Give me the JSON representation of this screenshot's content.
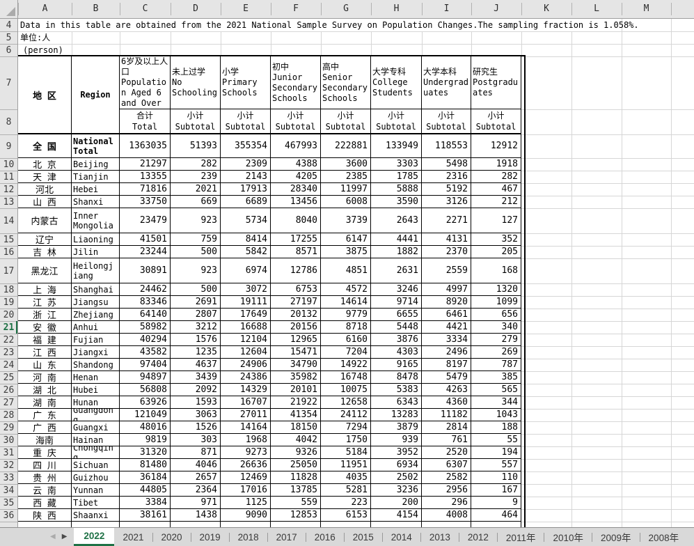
{
  "colors": {
    "accent_green": "#1e7145",
    "header_bg": "#e5e5e5",
    "gridline": "#d6d6d6",
    "tabbar_bg": "#d9d9d9"
  },
  "column_letters": [
    "A",
    "B",
    "C",
    "D",
    "E",
    "F",
    "G",
    "H",
    "I",
    "J",
    "K",
    "L",
    "M"
  ],
  "visible_row_numbers_range": [
    4,
    36
  ],
  "selected_row": 21,
  "notes": {
    "source_note": "Data in this table are obtained from the 2021 National Sample Survey on Population Changes.The sampling fraction is 1.058%.",
    "unit_cn": "单位:人",
    "unit_en": "(person)"
  },
  "table": {
    "corner_cn": "地 区",
    "corner_en": "Region",
    "columns": [
      {
        "cn": "6岁及以上人口",
        "en": "Population Aged 6 and Over",
        "sub_cn": "合计",
        "sub_en": "Total"
      },
      {
        "cn": "未上过学",
        "en": "No Schooling",
        "sub_cn": "小计",
        "sub_en": "Subtotal"
      },
      {
        "cn": "小学",
        "en": "Primary Schools",
        "sub_cn": "小计",
        "sub_en": "Subtotal"
      },
      {
        "cn": "初中",
        "en": "Junior Secondary Schools",
        "sub_cn": "小计",
        "sub_en": "Subtotal"
      },
      {
        "cn": "高中",
        "en": "Senior Secondary Schools",
        "sub_cn": "小计",
        "sub_en": "Subtotal"
      },
      {
        "cn": "大学专科",
        "en": "College Students",
        "sub_cn": "小计",
        "sub_en": "Subtotal"
      },
      {
        "cn": "大学本科",
        "en": "Undergraduates",
        "sub_cn": "小计",
        "sub_en": "Subtotal"
      },
      {
        "cn": "研究生",
        "en": "Postgraduates",
        "sub_cn": "小计",
        "sub_en": "Subtotal"
      }
    ],
    "rows": [
      {
        "row": 9,
        "cn": "全 国",
        "en": "National Total",
        "bold": true,
        "values": [
          1363035,
          51393,
          355354,
          467993,
          222881,
          133949,
          118553,
          12912
        ]
      },
      {
        "row": 10,
        "cn": "北 京",
        "en": "Beijing",
        "values": [
          21297,
          282,
          2309,
          4388,
          3600,
          3303,
          5498,
          1918
        ]
      },
      {
        "row": 11,
        "cn": "天 津",
        "en": "Tianjin",
        "values": [
          13355,
          239,
          2143,
          4205,
          2385,
          1785,
          2316,
          282
        ]
      },
      {
        "row": 12,
        "cn": "河北",
        "en": "Hebei",
        "values": [
          71816,
          2021,
          17913,
          28340,
          11997,
          5888,
          5192,
          467
        ]
      },
      {
        "row": 13,
        "cn": "山 西",
        "en": "Shanxi",
        "values": [
          33750,
          669,
          6689,
          13456,
          6008,
          3590,
          3126,
          212
        ]
      },
      {
        "row": 14,
        "cn": "内蒙古",
        "en": "Inner Mongolia",
        "values": [
          23479,
          923,
          5734,
          8040,
          3739,
          2643,
          2271,
          127
        ]
      },
      {
        "row": 15,
        "cn": "辽宁",
        "en": "Liaoning",
        "values": [
          41501,
          759,
          8414,
          17255,
          6147,
          4441,
          4131,
          352
        ]
      },
      {
        "row": 16,
        "cn": "吉 林",
        "en": "Jilin",
        "values": [
          23244,
          500,
          5842,
          8571,
          3875,
          1882,
          2370,
          205
        ]
      },
      {
        "row": 17,
        "cn": "黑龙江",
        "en": "Heilongjiang",
        "values": [
          30891,
          923,
          6974,
          12786,
          4851,
          2631,
          2559,
          168
        ]
      },
      {
        "row": 18,
        "cn": "上 海",
        "en": "Shanghai",
        "values": [
          24462,
          500,
          3072,
          6753,
          4572,
          3246,
          4997,
          1320
        ]
      },
      {
        "row": 19,
        "cn": "江 苏",
        "en": "Jiangsu",
        "values": [
          83346,
          2691,
          19111,
          27197,
          14614,
          9714,
          8920,
          1099
        ]
      },
      {
        "row": 20,
        "cn": "浙 江",
        "en": "Zhejiang",
        "values": [
          64140,
          2807,
          17649,
          20132,
          9779,
          6655,
          6461,
          656
        ]
      },
      {
        "row": 21,
        "cn": "安 徽",
        "en": "Anhui",
        "values": [
          58982,
          3212,
          16688,
          20156,
          8718,
          5448,
          4421,
          340
        ]
      },
      {
        "row": 22,
        "cn": "福 建",
        "en": "Fujian",
        "values": [
          40294,
          1576,
          12104,
          12965,
          6160,
          3876,
          3334,
          279
        ]
      },
      {
        "row": 23,
        "cn": "江 西",
        "en": "Jiangxi",
        "values": [
          43582,
          1235,
          12604,
          15471,
          7204,
          4303,
          2496,
          269
        ]
      },
      {
        "row": 24,
        "cn": "山 东",
        "en": "Shandong",
        "values": [
          97404,
          4637,
          24906,
          34790,
          14922,
          9165,
          8197,
          787
        ]
      },
      {
        "row": 25,
        "cn": "河 南",
        "en": "Henan",
        "values": [
          94897,
          3439,
          24386,
          35982,
          16748,
          8478,
          5479,
          385
        ]
      },
      {
        "row": 26,
        "cn": "湖 北",
        "en": "Hubei",
        "values": [
          56808,
          2092,
          14329,
          20101,
          10075,
          5383,
          4263,
          565
        ]
      },
      {
        "row": 27,
        "cn": "湖 南",
        "en": "Hunan",
        "values": [
          63926,
          1593,
          16707,
          21922,
          12658,
          6343,
          4360,
          344
        ]
      },
      {
        "row": 28,
        "cn": "广 东",
        "en": "Guangdong",
        "values": [
          121049,
          3063,
          27011,
          41354,
          24112,
          13283,
          11182,
          1043
        ]
      },
      {
        "row": 29,
        "cn": "广 西",
        "en": "Guangxi",
        "values": [
          48016,
          1526,
          14164,
          18150,
          7294,
          3879,
          2814,
          188
        ]
      },
      {
        "row": 30,
        "cn": "海南",
        "en": "Hainan",
        "values": [
          9819,
          303,
          1968,
          4042,
          1750,
          939,
          761,
          55
        ]
      },
      {
        "row": 31,
        "cn": "重 庆",
        "en": "Chongqing",
        "values": [
          31320,
          871,
          9273,
          9326,
          5184,
          3952,
          2520,
          194
        ]
      },
      {
        "row": 32,
        "cn": "四 川",
        "en": "Sichuan",
        "values": [
          81480,
          4046,
          26636,
          25050,
          11951,
          6934,
          6307,
          557
        ]
      },
      {
        "row": 33,
        "cn": "贵 州",
        "en": "Guizhou",
        "values": [
          36184,
          2657,
          12469,
          11828,
          4035,
          2502,
          2582,
          110
        ]
      },
      {
        "row": 34,
        "cn": "云 南",
        "en": "Yunnan",
        "values": [
          44805,
          2364,
          17016,
          13785,
          5281,
          3236,
          2956,
          167
        ]
      },
      {
        "row": 35,
        "cn": "西 藏",
        "en": "Tibet",
        "values": [
          3384,
          971,
          1125,
          559,
          223,
          200,
          296,
          9
        ]
      },
      {
        "row": 36,
        "cn": "陕 西",
        "en": "Shaanxi",
        "values": [
          38161,
          1438,
          9090,
          12853,
          6153,
          4154,
          4008,
          464
        ]
      }
    ]
  },
  "tabbar": {
    "active": "2022",
    "tabs": [
      "2022",
      "2021",
      "2020",
      "2019",
      "2018",
      "2017",
      "2016",
      "2015",
      "2014",
      "2013",
      "2012",
      "2011年",
      "2010年",
      "2009年",
      "2008年"
    ],
    "nav_left": "◀",
    "nav_right": "▶"
  }
}
